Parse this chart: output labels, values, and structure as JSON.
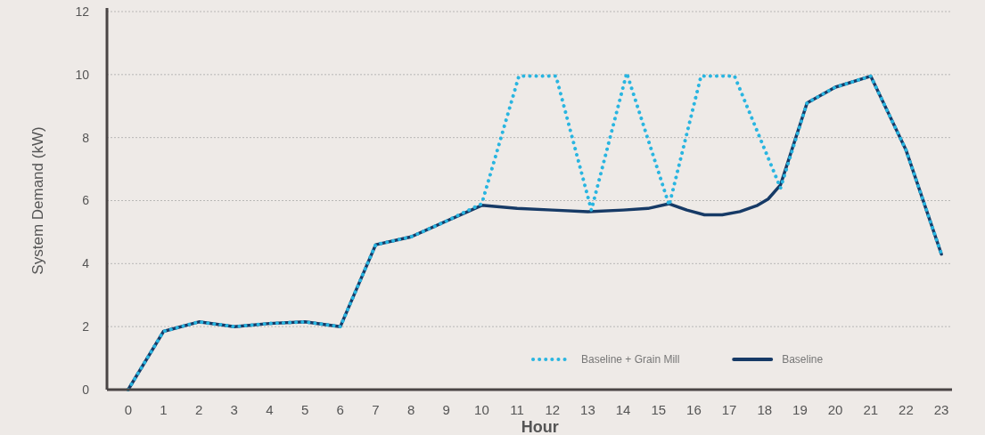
{
  "chart_data": {
    "type": "line",
    "xlabel": "Hour",
    "ylabel": "System Demand (kW)",
    "xlim": [
      -0.6,
      23.3
    ],
    "xticks": [
      0,
      1,
      2,
      3,
      4,
      5,
      6,
      7,
      8,
      9,
      10,
      11,
      12,
      13,
      14,
      15,
      16,
      17,
      18,
      19,
      20,
      21,
      22,
      23
    ],
    "ylim": [
      0,
      12
    ],
    "yticks": [
      0,
      2,
      4,
      6,
      8,
      10,
      12
    ],
    "grid": "y",
    "legend": "bottom right",
    "marker": "none",
    "series": [
      {
        "name": "Baseline",
        "color": "#163a66",
        "line_style": "solid",
        "x": [
          0,
          1,
          2,
          3,
          4,
          5,
          6,
          7,
          8,
          9,
          10,
          11,
          12,
          13,
          14,
          14.7,
          15.3,
          15.8,
          16.3,
          16.8,
          17.3,
          17.8,
          18.1,
          18.45,
          19.2,
          20,
          21,
          22,
          23
        ],
        "values": [
          0,
          1.85,
          2.15,
          2.0,
          2.1,
          2.15,
          2.0,
          4.6,
          4.85,
          5.35,
          5.85,
          5.75,
          5.7,
          5.65,
          5.7,
          5.75,
          5.9,
          5.7,
          5.55,
          5.55,
          5.65,
          5.85,
          6.05,
          6.5,
          9.1,
          9.6,
          9.95,
          7.6,
          4.3
        ]
      },
      {
        "name": "Baseline + Grain Mill",
        "color": "#29b5e0",
        "line_style": "dotted",
        "x": [
          0,
          1,
          2,
          3,
          4,
          5,
          6,
          7,
          8,
          9,
          10,
          11.05,
          12.1,
          13.1,
          14.1,
          15.3,
          16.2,
          17.15,
          18.45,
          19.2,
          20,
          21,
          22,
          23
        ],
        "values": [
          0,
          1.85,
          2.15,
          2.0,
          2.1,
          2.15,
          2.0,
          4.6,
          4.85,
          5.35,
          5.9,
          9.95,
          9.95,
          5.7,
          10.05,
          5.85,
          9.95,
          9.95,
          6.4,
          9.1,
          9.6,
          9.95,
          7.6,
          4.3
        ]
      }
    ]
  }
}
